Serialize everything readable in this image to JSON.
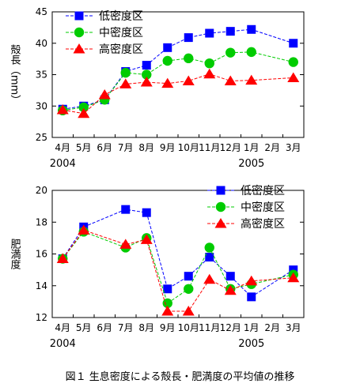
{
  "caption": "図１ 生息密度による殻長・肥満度の平均値の推移",
  "months": [
    "4月",
    "5月",
    "6月",
    "7月",
    "8月",
    "9月",
    "10月",
    "11月",
    "12月",
    "1月",
    "2月",
    "3月"
  ],
  "years": [
    {
      "label": "2004",
      "month_index": 0
    },
    {
      "label": "2005",
      "month_index": 9
    }
  ],
  "colors": {
    "low": "#0000ff",
    "mid": "#00cc00",
    "high": "#ff0000",
    "axis": "#000000"
  },
  "chart_data": [
    {
      "type": "line",
      "ylabel": "殻長（mm）",
      "xlabel": "",
      "ylim": [
        25,
        45
      ],
      "yticks": [
        25,
        30,
        35,
        40,
        45
      ],
      "grid": false,
      "legend": "top-left",
      "categories": [
        "4月",
        "5月",
        "6月",
        "7月",
        "8月",
        "9月",
        "10月",
        "11月",
        "12月",
        "1月",
        "2月",
        "3月"
      ],
      "series": [
        {
          "name": "低密度区",
          "key": "low",
          "marker": "square",
          "values": [
            29.5,
            30.0,
            31.0,
            35.5,
            36.5,
            39.3,
            40.9,
            41.6,
            41.9,
            42.2,
            null,
            40.0
          ]
        },
        {
          "name": "中密度区",
          "key": "mid",
          "marker": "circle",
          "values": [
            29.3,
            29.8,
            31.0,
            35.3,
            35.0,
            37.2,
            37.6,
            36.8,
            38.5,
            38.6,
            null,
            37.0
          ]
        },
        {
          "name": "高密度区",
          "key": "high",
          "marker": "triangle",
          "values": [
            29.4,
            28.8,
            31.8,
            33.5,
            33.8,
            33.6,
            34.0,
            35.1,
            34.0,
            34.1,
            null,
            34.5
          ]
        }
      ]
    },
    {
      "type": "line",
      "ylabel": "肥満度",
      "xlabel": "",
      "ylim": [
        12,
        20
      ],
      "yticks": [
        12,
        14,
        16,
        18,
        20
      ],
      "grid": false,
      "legend": "top-right",
      "categories": [
        "4月",
        "5月",
        "6月",
        "7月",
        "8月",
        "9月",
        "10月",
        "11月",
        "12月",
        "1月",
        "2月",
        "3月"
      ],
      "series": [
        {
          "name": "低密度区",
          "key": "low",
          "marker": "square",
          "values": [
            15.7,
            17.7,
            null,
            18.8,
            18.6,
            13.8,
            14.6,
            15.8,
            14.6,
            13.3,
            null,
            15.0
          ]
        },
        {
          "name": "中密度区",
          "key": "mid",
          "marker": "circle",
          "values": [
            15.7,
            17.4,
            null,
            16.4,
            17.0,
            12.9,
            13.8,
            16.4,
            13.8,
            14.1,
            null,
            14.7
          ]
        },
        {
          "name": "高密度区",
          "key": "high",
          "marker": "triangle",
          "values": [
            15.7,
            17.5,
            null,
            16.6,
            16.9,
            12.4,
            12.4,
            14.4,
            13.7,
            14.3,
            null,
            14.5
          ]
        }
      ]
    }
  ]
}
